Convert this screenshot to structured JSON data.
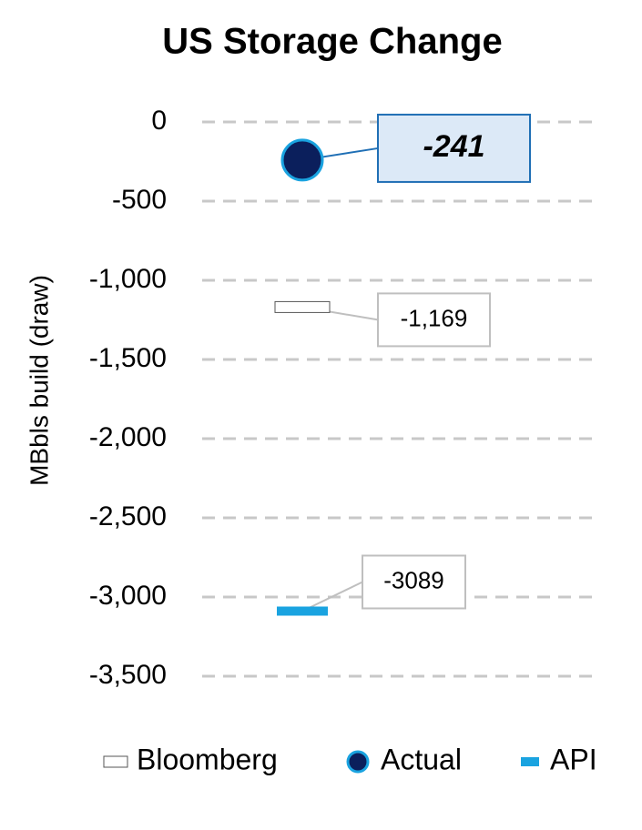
{
  "chart_data": {
    "type": "line",
    "title": "US Storage Change",
    "y_label": "MBbls build (draw)",
    "ylim": [
      -3500,
      0
    ],
    "yticks": [
      0,
      {
        "value": -500,
        "label": "-500"
      },
      {
        "value": -1000,
        "label": "-1,000"
      },
      {
        "value": -1500,
        "label": "-1,500"
      },
      {
        "value": -2000,
        "label": "-2,000"
      },
      {
        "value": -2500,
        "label": "-2,500"
      },
      {
        "value": -3000,
        "label": "-3,000"
      },
      {
        "value": -3500,
        "label": "-3,500"
      }
    ],
    "grid": true,
    "legend": "bottom",
    "series": [
      {
        "name": "Bloomberg",
        "marker": "rect",
        "color": "#ffffff",
        "edge": "#555555",
        "values": [
          -1169
        ],
        "value_labels": [
          "-1,169"
        ]
      },
      {
        "name": "Actual",
        "marker": "circle",
        "color": "#0b1f5c",
        "edge": "#1aa3e0",
        "values": [
          -241
        ],
        "value_labels": [
          "-241"
        ]
      },
      {
        "name": "API",
        "marker": "dash",
        "color": "#1aa3e0",
        "edge": "#1aa3e0",
        "values": [
          -3089
        ],
        "value_labels": [
          "-3089"
        ]
      }
    ]
  }
}
